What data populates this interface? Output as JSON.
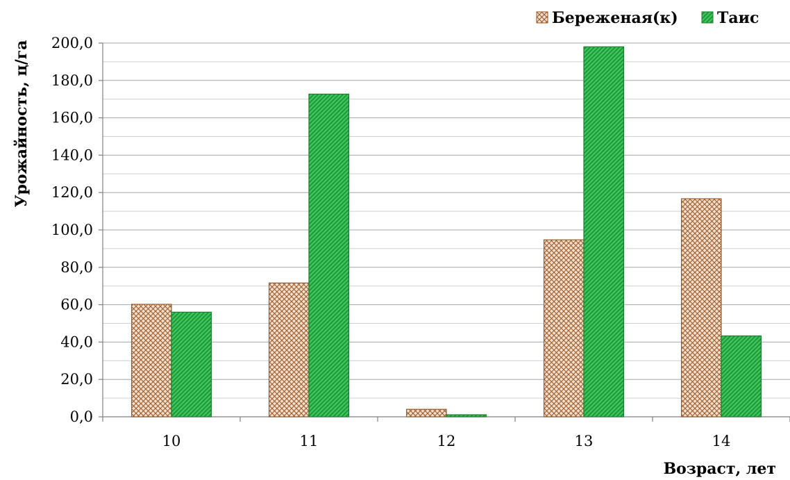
{
  "chart_data": {
    "type": "bar",
    "title": "",
    "xlabel": "Возраст, лет",
    "ylabel": "Урожайность, ц/га",
    "categories": [
      "10",
      "11",
      "12",
      "13",
      "14"
    ],
    "ylim": [
      0,
      200
    ],
    "yticks": [
      "0,0",
      "20,0",
      "40,0",
      "60,0",
      "80,0",
      "100,0",
      "120,0",
      "140,0",
      "160,0",
      "180,0",
      "200,0"
    ],
    "grid": true,
    "legend_position": "top-right",
    "series": [
      {
        "name": "Береженая(к)",
        "values": [
          60.2,
          71.6,
          4.0,
          94.7,
          116.7
        ],
        "color": "#f2dcc6",
        "stroke": "#9b5a2c",
        "pattern": "crosshatch"
      },
      {
        "name": "Таис",
        "values": [
          56.0,
          172.7,
          1.1,
          198.0,
          43.3
        ],
        "color": "#2fb84a",
        "stroke": "#1e7d2f",
        "pattern": "diagonal"
      }
    ]
  }
}
